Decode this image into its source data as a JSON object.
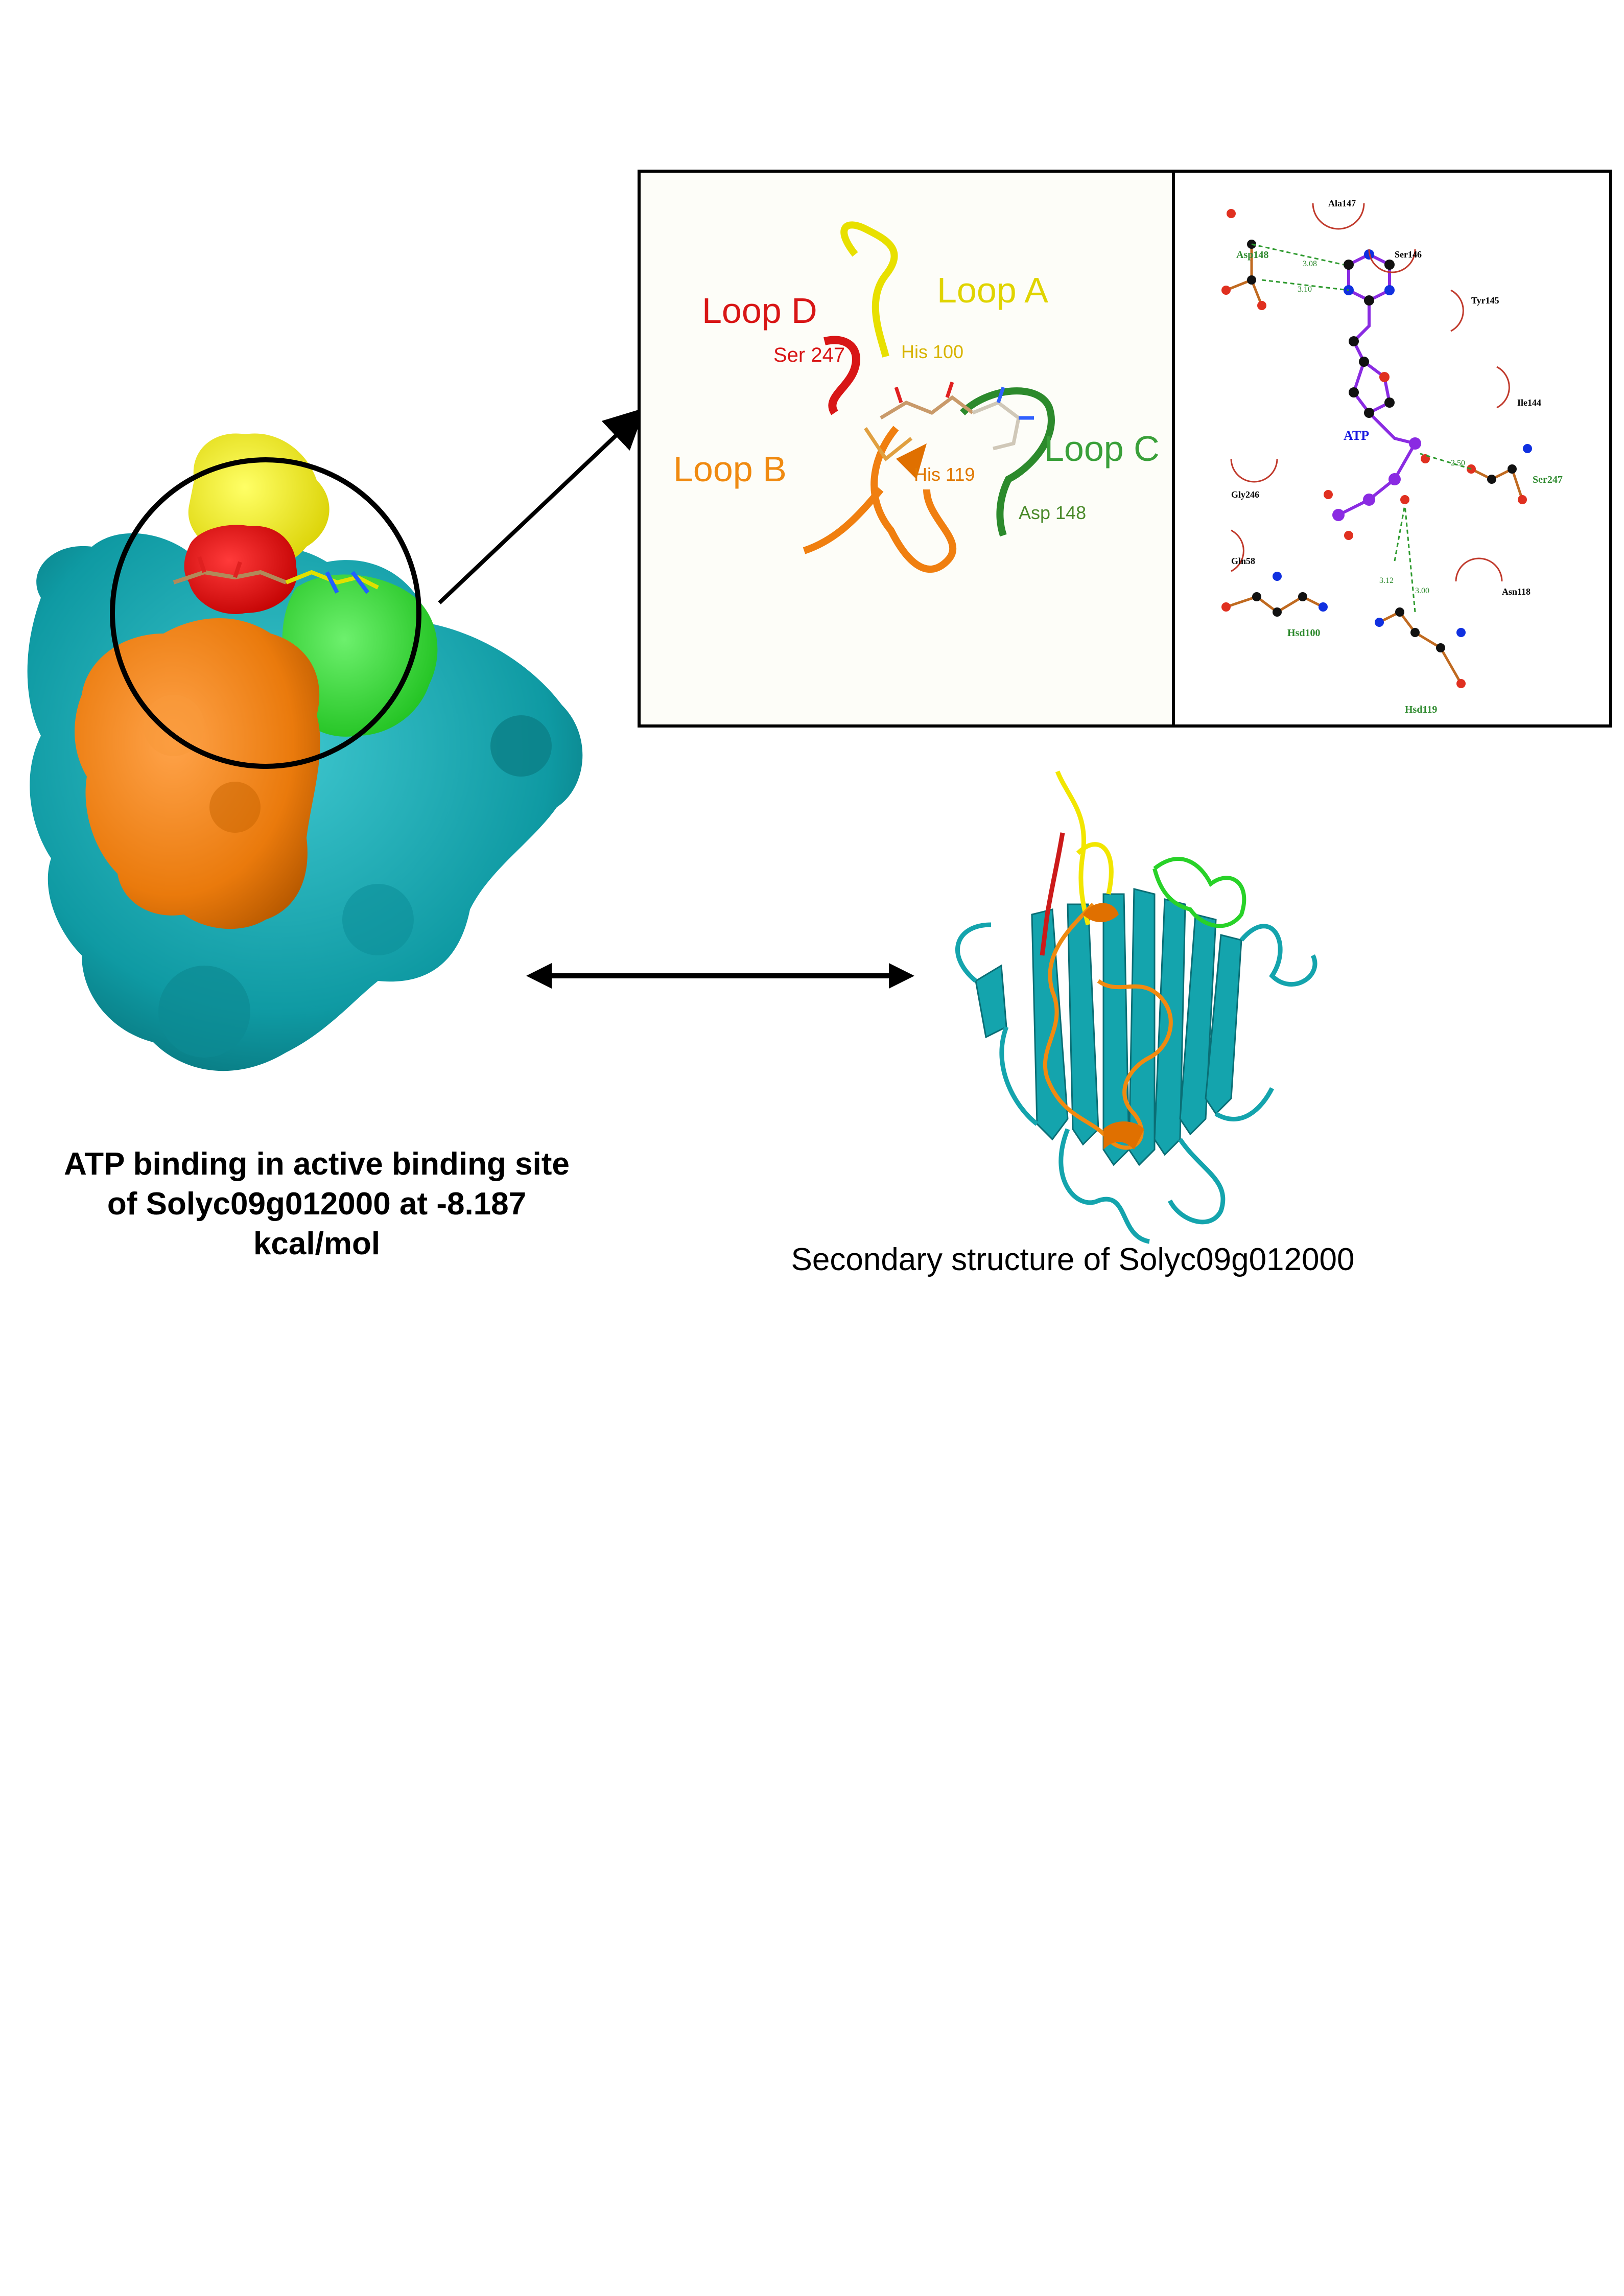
{
  "surface_caption": {
    "line1": "ATP binding in active binding site",
    "line2": "of Solyc09g012000 at -8.187",
    "line3": "kcal/mol"
  },
  "cartoon_caption": "Secondary structure of Solyc09g012000",
  "loops_panel": {
    "loop_a": "Loop A",
    "loop_b": "Loop B",
    "loop_c": "Loop C",
    "loop_d": "Loop D",
    "res_ser247": "Ser 247",
    "res_his100": "His 100",
    "res_his119": "His 119",
    "res_asp148": "Asp 148"
  },
  "ligplot_panel": {
    "ligand": "ATP",
    "residues": {
      "ala147": "Ala147",
      "ser146": "Ser146",
      "tyr145": "Tyr145",
      "ile144": "Ile144",
      "asp148": "Asp148",
      "gly246": "Gly246",
      "gln58": "Gln58",
      "asn118": "Asn118",
      "ser247": "Ser247",
      "hsd100": "Hsd100",
      "hsd119": "Hsd119"
    },
    "distances": {
      "d1": "3.08",
      "d2": "3.10",
      "d3": "2.50",
      "d4": "3.12",
      "d5": "3.00"
    }
  },
  "colors": {
    "loop_a": "#f2e600",
    "loop_b": "#f08a10",
    "loop_c": "#2ea82e",
    "loop_d": "#dd1a1a",
    "body": "#13a4ad",
    "hbond": "#2e9a2e",
    "ligand": "#8a2be2"
  }
}
